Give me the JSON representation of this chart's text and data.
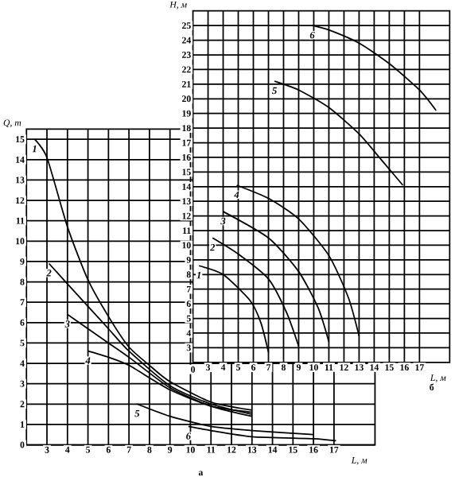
{
  "chart_data": [
    {
      "type": "line",
      "xlabel": "L, м",
      "ylabel": "Q, т",
      "annotations": [
        "а"
      ],
      "xlim": [
        2,
        19
      ],
      "ylim": [
        0,
        15.5
      ],
      "xticks": [
        3,
        4,
        5,
        6,
        7,
        8,
        9,
        10,
        11,
        12,
        13,
        14,
        15,
        16,
        17
      ],
      "yticks": [
        0,
        1,
        2,
        3,
        4,
        5,
        6,
        7,
        8,
        9,
        10,
        11,
        12,
        13,
        14,
        15
      ],
      "grid": true,
      "series": [
        {
          "name": "1",
          "color": "#000000",
          "x": [
            2.4,
            3,
            4,
            5,
            6,
            7,
            8,
            9,
            11,
            13
          ],
          "values": [
            15.0,
            14.1,
            10.7,
            8.1,
            6.3,
            4.8,
            3.9,
            3.1,
            2.1,
            1.7
          ]
        },
        {
          "name": "2",
          "color": "#000000",
          "x": [
            3.1,
            4,
            5,
            6,
            7,
            9,
            11,
            13
          ],
          "values": [
            8.9,
            7.9,
            6.8,
            5.7,
            4.6,
            2.9,
            2.0,
            1.5
          ]
        },
        {
          "name": "3",
          "color": "#000000",
          "x": [
            4,
            5,
            6,
            7,
            9,
            11,
            13
          ],
          "values": [
            6.4,
            5.7,
            5.0,
            4.3,
            2.8,
            1.9,
            1.4
          ]
        },
        {
          "name": "4",
          "color": "#000000",
          "x": [
            5,
            6,
            7,
            9,
            11,
            13
          ],
          "values": [
            4.6,
            4.3,
            3.9,
            2.7,
            1.9,
            1.6
          ]
        },
        {
          "name": "5",
          "color": "#000000",
          "x": [
            7.4,
            9,
            11,
            13,
            16
          ],
          "values": [
            2.0,
            1.4,
            0.9,
            0.7,
            0.5
          ]
        },
        {
          "name": "6",
          "color": "#000000",
          "x": [
            9.9,
            11,
            13,
            16,
            17.1
          ],
          "values": [
            0.9,
            0.7,
            0.4,
            0.3,
            0.2
          ]
        }
      ]
    },
    {
      "type": "line",
      "xlabel": "L, м",
      "ylabel": "H, м",
      "annotations": [
        "б",
        "0"
      ],
      "xlim": [
        2,
        19
      ],
      "ylim": [
        2,
        26
      ],
      "xticks": [
        3,
        4,
        5,
        6,
        7,
        8,
        9,
        10,
        11,
        12,
        13,
        14,
        15,
        16,
        17
      ],
      "yticks": [
        3,
        4,
        5,
        6,
        7,
        8,
        9,
        10,
        11,
        12,
        13,
        14,
        15,
        16,
        17,
        18,
        19,
        20,
        21,
        22,
        23,
        24,
        25
      ],
      "grid": true,
      "series": [
        {
          "name": "1",
          "color": "#000000",
          "x": [
            2.4,
            4,
            5.8,
            6.5,
            7
          ],
          "values": [
            8.6,
            8.0,
            6.2,
            4.7,
            2.7
          ]
        },
        {
          "name": "2",
          "color": "#000000",
          "x": [
            3.3,
            5,
            7,
            8.2,
            9
          ],
          "values": [
            10.5,
            9.4,
            7.7,
            5.4,
            3.1
          ]
        },
        {
          "name": "3",
          "color": "#000000",
          "x": [
            4,
            7,
            9,
            10.3,
            11
          ],
          "values": [
            12.3,
            10.5,
            8.2,
            5.7,
            3.4
          ]
        },
        {
          "name": "4",
          "color": "#000000",
          "x": [
            4.9,
            7,
            9,
            11,
            12.3,
            13
          ],
          "values": [
            14.1,
            13.2,
            11.8,
            9.3,
            6.4,
            3.8
          ]
        },
        {
          "name": "5",
          "color": "#000000",
          "x": [
            7.4,
            9,
            11,
            13,
            14.5,
            15.9
          ],
          "values": [
            21.2,
            20.6,
            19.4,
            17.6,
            15.8,
            14.1
          ]
        },
        {
          "name": "6",
          "color": "#000000",
          "x": [
            9.9,
            11,
            13,
            15,
            17,
            18.1
          ],
          "values": [
            25.0,
            24.7,
            23.8,
            22.4,
            20.6,
            19.2
          ]
        }
      ]
    }
  ]
}
